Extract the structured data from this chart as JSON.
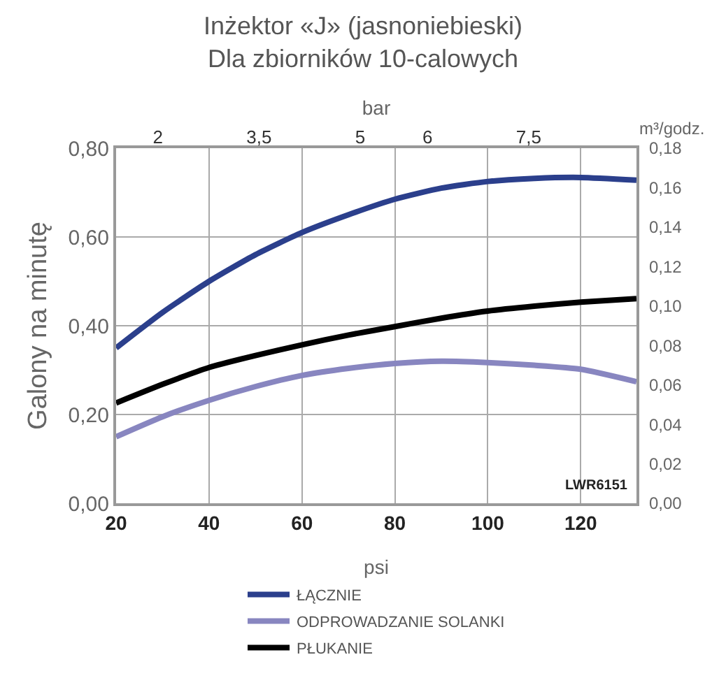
{
  "chart_data": {
    "type": "line",
    "title": "Inżektor «J» (jasnoniebieski)",
    "subtitle": "Dla zbiorników 10-calowych",
    "xlabel": "psi",
    "ylabel": "Galony na minutę",
    "y2label": "m³/godz.",
    "x2label": "bar",
    "x": [
      20,
      30,
      40,
      50,
      60,
      70,
      80,
      90,
      100,
      110,
      120,
      132
    ],
    "series": [
      {
        "name": "ŁĄCZNIE",
        "color": "#2b3f8c",
        "values": [
          0.35,
          0.43,
          0.5,
          0.56,
          0.61,
          0.65,
          0.685,
          0.71,
          0.725,
          0.732,
          0.734,
          0.728
        ]
      },
      {
        "name": "ODPROWADZANIE SOLANKI",
        "color": "#8886c0",
        "values": [
          0.15,
          0.195,
          0.232,
          0.263,
          0.288,
          0.304,
          0.315,
          0.32,
          0.317,
          0.311,
          0.302,
          0.274
        ]
      },
      {
        "name": "PŁUKANIE",
        "color": "#000000",
        "values": [
          0.226,
          0.268,
          0.306,
          0.333,
          0.357,
          0.379,
          0.398,
          0.417,
          0.433,
          0.444,
          0.453,
          0.461
        ]
      }
    ],
    "xlim": [
      20,
      132
    ],
    "xticks": [
      20,
      40,
      60,
      80,
      100,
      120
    ],
    "ylim": [
      0,
      0.8
    ],
    "yticks": [
      {
        "value": 0,
        "label": "0,00"
      },
      {
        "value": 0.2,
        "label": "0,20"
      },
      {
        "value": 0.4,
        "label": "0,40"
      },
      {
        "value": 0.6,
        "label": "0,60"
      },
      {
        "value": 0.8,
        "label": "0,80"
      }
    ],
    "y2lim": [
      0,
      0.18
    ],
    "y2ticks": [
      {
        "value": 0,
        "label": "0,00"
      },
      {
        "value": 0.02,
        "label": "0,02"
      },
      {
        "value": 0.04,
        "label": "0,04"
      },
      {
        "value": 0.06,
        "label": "0,06"
      },
      {
        "value": 0.08,
        "label": "0,08"
      },
      {
        "value": 0.1,
        "label": "0,10"
      },
      {
        "value": 0.12,
        "label": "0,12"
      },
      {
        "value": 0.14,
        "label": "0,14"
      },
      {
        "value": 0.16,
        "label": "0,16"
      },
      {
        "value": 0.18,
        "label": "0,18"
      }
    ],
    "x2lim": [
      1.38,
      9.1
    ],
    "x2ticks": [
      2,
      {
        "value": 3.5,
        "label": "3,5"
      },
      5,
      6,
      {
        "value": 7.5,
        "label": "7,5"
      }
    ],
    "annotations": [
      "LWR6151"
    ],
    "grid": true,
    "legend": "bottom",
    "marker": "none",
    "line_style": "solid"
  }
}
